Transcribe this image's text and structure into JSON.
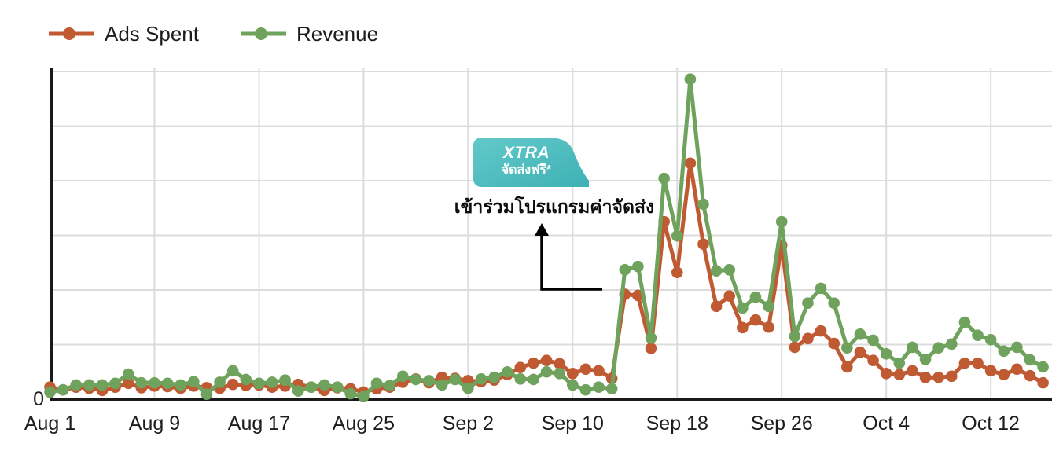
{
  "legend": {
    "items": [
      {
        "label": "Ads Spent",
        "color": "#c05a33"
      },
      {
        "label": "Revenue",
        "color": "#6fa35d"
      }
    ]
  },
  "annotation": {
    "badge_line1": "XTRA",
    "badge_line2": "จัดส่งฟรี*",
    "badge_color_start": "#63c9ca",
    "badge_color_end": "#3eb1b4",
    "text": "เข้าร่วมโปรแกรมค่าจัดส่ง"
  },
  "colors": {
    "axis": "#1a1a1a",
    "grid": "#dcdcdc",
    "tick_text": "#1d1d1d",
    "background": "#ffffff"
  },
  "chart_data": {
    "type": "line",
    "title": "",
    "xlabel": "",
    "ylabel": "",
    "grid": true,
    "legend_position": "top-left",
    "ylim": [
      0,
      61
    ],
    "y_gridline_step": 10,
    "y_tick_labels": [
      "0"
    ],
    "x_tick_indices": [
      0,
      8,
      16,
      24,
      32,
      40,
      48,
      56,
      64,
      72
    ],
    "x_tick_labels": [
      "Aug 1",
      "Aug 9",
      "Aug 17",
      "Aug 25",
      "Sep 2",
      "Sep 10",
      "Sep 18",
      "Sep 26",
      "Oct 4",
      "Oct 12"
    ],
    "x": [
      "Aug 1",
      "Aug 2",
      "Aug 3",
      "Aug 4",
      "Aug 5",
      "Aug 6",
      "Aug 7",
      "Aug 8",
      "Aug 9",
      "Aug 10",
      "Aug 11",
      "Aug 12",
      "Aug 13",
      "Aug 14",
      "Aug 15",
      "Aug 16",
      "Aug 17",
      "Aug 18",
      "Aug 19",
      "Aug 20",
      "Aug 21",
      "Aug 22",
      "Aug 23",
      "Aug 24",
      "Aug 25",
      "Aug 26",
      "Aug 27",
      "Aug 28",
      "Aug 29",
      "Aug 30",
      "Aug 31",
      "Sep 1",
      "Sep 2",
      "Sep 3",
      "Sep 4",
      "Sep 5",
      "Sep 6",
      "Sep 7",
      "Sep 8",
      "Sep 9",
      "Sep 10",
      "Sep 11",
      "Sep 12",
      "Sep 13",
      "Sep 14",
      "Sep 15",
      "Sep 16",
      "Sep 17",
      "Sep 18",
      "Sep 19",
      "Sep 20",
      "Sep 21",
      "Sep 22",
      "Sep 23",
      "Sep 24",
      "Sep 25",
      "Sep 26",
      "Sep 27",
      "Sep 28",
      "Sep 29",
      "Sep 30",
      "Oct 1",
      "Oct 2",
      "Oct 3",
      "Oct 4",
      "Oct 5",
      "Oct 6",
      "Oct 7",
      "Oct 8",
      "Oct 9",
      "Oct 10",
      "Oct 11",
      "Oct 12",
      "Oct 13",
      "Oct 14",
      "Oct 15",
      "Oct 16"
    ],
    "series": [
      {
        "name": "Ads Spent",
        "color": "#c05a33",
        "values": [
          2.2,
          1.7,
          2.2,
          2.0,
          1.6,
          2.2,
          2.9,
          2.1,
          2.4,
          2.3,
          2.0,
          2.4,
          2.1,
          2.0,
          2.7,
          2.5,
          2.6,
          2.2,
          2.4,
          2.7,
          2.2,
          1.6,
          2.1,
          1.9,
          1.3,
          1.9,
          2.2,
          3.1,
          3.7,
          3.0,
          4.0,
          3.8,
          3.4,
          3.2,
          3.5,
          4.5,
          5.8,
          6.6,
          7.1,
          6.5,
          4.7,
          5.5,
          5.2,
          3.8,
          19.2,
          19.0,
          9.3,
          32.5,
          23.2,
          43.2,
          28.4,
          17.0,
          18.9,
          13.1,
          14.5,
          13.2,
          28.2,
          9.5,
          11.1,
          12.5,
          10.2,
          5.9,
          8.6,
          7.1,
          4.7,
          4.5,
          5.2,
          4.0,
          4.0,
          4.2,
          6.6,
          6.6,
          5.2,
          4.5,
          5.5,
          4.3,
          3.0
        ]
      },
      {
        "name": "Revenue",
        "color": "#6fa35d",
        "values": [
          1.3,
          1.7,
          2.6,
          2.6,
          2.6,
          2.9,
          4.6,
          3.0,
          3.0,
          2.9,
          2.6,
          3.2,
          0.9,
          3.1,
          5.2,
          3.6,
          2.9,
          3.1,
          3.5,
          1.5,
          2.2,
          2.6,
          2.2,
          1.0,
          0.5,
          2.9,
          2.5,
          4.2,
          3.6,
          3.4,
          2.6,
          3.6,
          2.0,
          3.7,
          4.0,
          5.0,
          3.7,
          3.6,
          5.0,
          4.7,
          2.6,
          1.7,
          2.2,
          1.9,
          23.7,
          24.3,
          11.2,
          40.4,
          29.9,
          58.6,
          35.7,
          23.5,
          23.7,
          16.7,
          18.7,
          17.0,
          32.5,
          11.5,
          17.6,
          20.3,
          17.6,
          9.4,
          11.9,
          10.8,
          8.3,
          6.6,
          9.5,
          7.3,
          9.4,
          10.1,
          14.1,
          11.7,
          10.9,
          8.8,
          9.5,
          7.2,
          5.9
        ]
      }
    ]
  }
}
